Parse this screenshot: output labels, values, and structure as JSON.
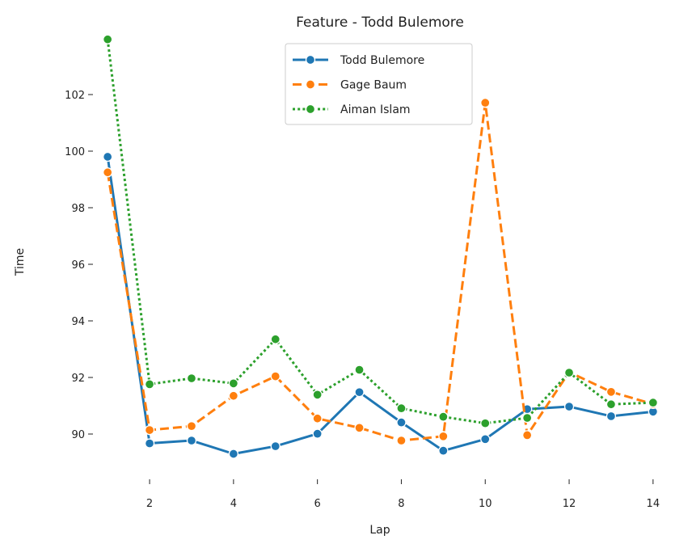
{
  "chart_data": {
    "type": "line",
    "title": "Feature - Todd Bulemore",
    "xlabel": "Lap",
    "ylabel": "Time",
    "xlim": [
      0.65,
      14.35
    ],
    "ylim": [
      88.4,
      104.2
    ],
    "x_ticks": [
      2,
      4,
      6,
      8,
      10,
      12,
      14
    ],
    "y_ticks": [
      90,
      92,
      94,
      96,
      98,
      100,
      102
    ],
    "grid": false,
    "legend_position": "top-center",
    "x": [
      1,
      2,
      3,
      4,
      5,
      6,
      7,
      8,
      9,
      10,
      11,
      12,
      13,
      14
    ],
    "series": [
      {
        "name": "Todd Bulemore",
        "color": "#1f77b4",
        "dash": "solid",
        "values": [
          99.8,
          89.67,
          89.77,
          89.3,
          89.57,
          90.01,
          91.48,
          90.41,
          89.41,
          89.82,
          90.88,
          90.97,
          90.63,
          90.79
        ]
      },
      {
        "name": "Gage Baum",
        "color": "#ff7f0e",
        "dash": "dashed",
        "values": [
          99.25,
          90.14,
          90.28,
          91.35,
          92.04,
          90.55,
          90.22,
          89.77,
          89.92,
          101.71,
          89.96,
          92.19,
          91.49,
          91.06
        ]
      },
      {
        "name": "Aiman Islam",
        "color": "#2ca02c",
        "dash": "dotted",
        "values": [
          103.95,
          91.76,
          91.97,
          91.79,
          93.35,
          91.39,
          92.27,
          90.91,
          90.61,
          90.38,
          90.57,
          92.17,
          91.05,
          91.11
        ]
      }
    ]
  }
}
